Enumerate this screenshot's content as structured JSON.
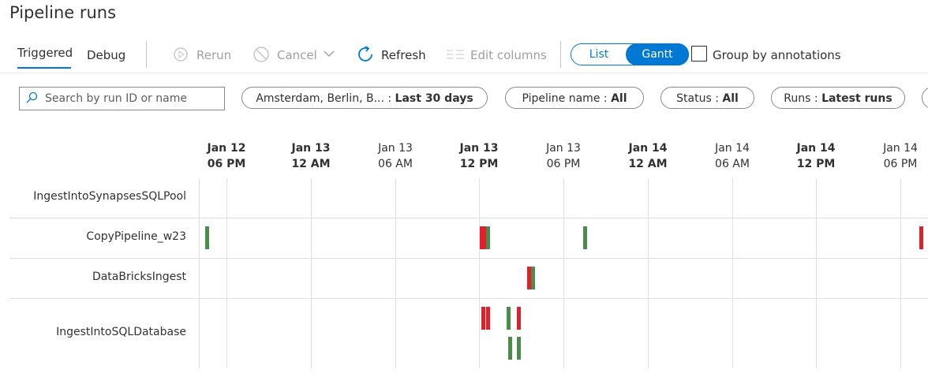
{
  "header": {
    "title": "Pipeline runs"
  },
  "tabs": [
    {
      "label": "Triggered",
      "selected": true
    },
    {
      "label": "Debug",
      "selected": false
    }
  ],
  "toolbar": {
    "rerun": "Rerun",
    "cancel": "Cancel",
    "refresh": "Refresh",
    "edit_columns": "Edit columns",
    "view_toggle": [
      "List",
      "Gantt"
    ],
    "group_by": "Group by annotations"
  },
  "filters": {
    "search_placeholder": "Search by run ID or name",
    "pills": [
      {
        "label": "Amsterdam, Berlin, B...  :",
        "value": "Last 30 days"
      },
      {
        "label": "Pipeline name :",
        "value": "All"
      },
      {
        "label": "Status :",
        "value": "All"
      },
      {
        "label": "Runs :",
        "value": "Latest runs"
      }
    ]
  },
  "gantt": {
    "columns": [
      {
        "date": "Jan 12",
        "time": "06 PM",
        "bold": true
      },
      {
        "date": "Jan 13",
        "time": "12 AM",
        "bold": true
      },
      {
        "date": "Jan 13",
        "time": "06 AM",
        "bold": false
      },
      {
        "date": "Jan 13",
        "time": "12 PM",
        "bold": true
      },
      {
        "date": "Jan 13",
        "time": "06 PM",
        "bold": false
      },
      {
        "date": "Jan 14",
        "time": "12 AM",
        "bold": true
      },
      {
        "date": "Jan 14",
        "time": "06 AM",
        "bold": false
      },
      {
        "date": "Jan 14",
        "time": "12 PM",
        "bold": true
      },
      {
        "date": "Jan 14",
        "time": "06 PM",
        "bold": false
      }
    ],
    "rows": [
      "IngestIntoSynapsesSQLPool",
      "CopyPipeline_w23",
      "DataBricksIngest",
      "IngestIntoSQLDatabase"
    ]
  }
}
